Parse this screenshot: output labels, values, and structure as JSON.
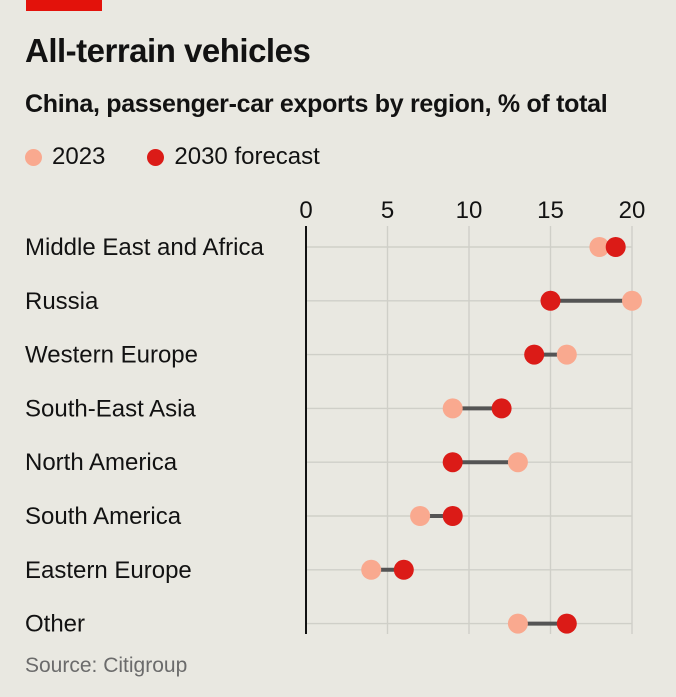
{
  "title": "All-terrain vehicles",
  "subtitle": "China, passenger-car exports by region, % of total",
  "source": "Source: Citigroup",
  "colors": {
    "brand": "#e3120b",
    "series_2023": "#f9a98f",
    "series_2030": "#db1b17",
    "connector": "#545454",
    "grid": "#cfcfc8",
    "background": "#e9e8e1"
  },
  "chart_data": {
    "type": "dot-plot",
    "title": "All-terrain vehicles",
    "subtitle": "China, passenger-car exports by region, % of total",
    "xlim": [
      0,
      20
    ],
    "xticks": [
      "0",
      "5",
      "10",
      "15",
      "20"
    ],
    "grid": true,
    "legend": "top-left",
    "categories": [
      "Middle East and Africa",
      "Russia",
      "Western Europe",
      "South-East Asia",
      "North America",
      "South America",
      "Eastern Europe",
      "Other"
    ],
    "series": [
      {
        "name": "2023",
        "color": "#f9a98f",
        "values": [
          18,
          20,
          16,
          9,
          13,
          7,
          4,
          13
        ]
      },
      {
        "name": "2030 forecast",
        "color": "#db1b17",
        "values": [
          19,
          15,
          14,
          12,
          9,
          9,
          6,
          16
        ]
      }
    ]
  }
}
